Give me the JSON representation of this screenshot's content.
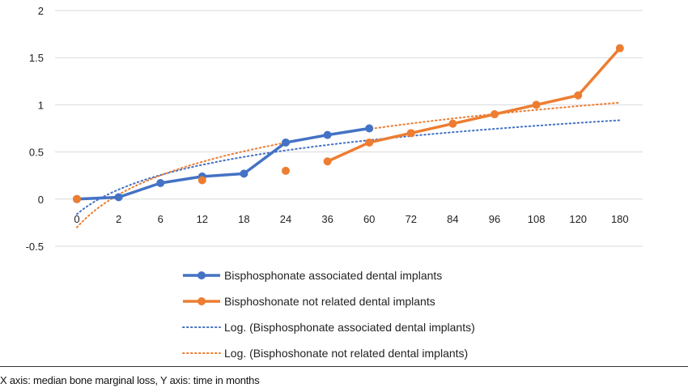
{
  "chart_data": {
    "type": "line",
    "title": "",
    "xlabel": "",
    "ylabel": "",
    "categories": [
      "0",
      "2",
      "6",
      "12",
      "18",
      "24",
      "36",
      "60",
      "72",
      "84",
      "96",
      "108",
      "120",
      "180"
    ],
    "y_ticks": [
      "2",
      "1.5",
      "1",
      "0.5",
      "0",
      "-0.5"
    ],
    "ylim": [
      -0.5,
      2
    ],
    "grid": "horizontal",
    "legend_position": "bottom",
    "colors": {
      "blue": "#4472C4",
      "orange": "#ED7D31",
      "grid": "#d9d9d9"
    },
    "series": [
      {
        "name": "Bisphosphonate associated dental implants",
        "color": "#4472C4",
        "style": "line-markers",
        "points": [
          {
            "category": "0",
            "value": 0,
            "connect": true
          },
          {
            "category": "2",
            "value": 0.02,
            "connect": true
          },
          {
            "category": "6",
            "value": 0.17,
            "connect": true
          },
          {
            "category": "12",
            "value": 0.24,
            "connect": true
          },
          {
            "category": "18",
            "value": 0.27,
            "connect": true
          },
          {
            "category": "24",
            "value": 0.6,
            "connect": true
          },
          {
            "category": "36",
            "value": 0.68,
            "connect": true
          },
          {
            "category": "60",
            "value": 0.75,
            "connect": true
          }
        ]
      },
      {
        "name": "Bisphoshonate not related dental implants",
        "color": "#ED7D31",
        "style": "line-markers",
        "points": [
          {
            "category": "0",
            "value": 0,
            "connect": false
          },
          {
            "category": "12",
            "value": 0.2,
            "connect": false
          },
          {
            "category": "24",
            "value": 0.3,
            "connect": false
          },
          {
            "category": "36",
            "value": 0.4,
            "connect": true
          },
          {
            "category": "60",
            "value": 0.6,
            "connect": true
          },
          {
            "category": "72",
            "value": 0.7,
            "connect": true
          },
          {
            "category": "84",
            "value": 0.8,
            "connect": true
          },
          {
            "category": "96",
            "value": 0.9,
            "connect": true
          },
          {
            "category": "108",
            "value": 1.0,
            "connect": true
          },
          {
            "category": "120",
            "value": 1.1,
            "connect": true
          },
          {
            "category": "180",
            "value": 1.6,
            "connect": true
          }
        ]
      },
      {
        "name": "Log. (Bisphosphonate associated dental implants)",
        "color": "#4472C4",
        "style": "dotted-trendline",
        "trend": {
          "a": -0.16,
          "b": 0.3775
        }
      },
      {
        "name": "Log. (Bisphoshonate not related dental implants)",
        "color": "#ED7D31",
        "style": "dotted-trendline",
        "trend": {
          "a": -0.3,
          "b": 0.5015
        }
      }
    ]
  },
  "caption": "X axis: median bone marginal loss, Y axis: time in months"
}
